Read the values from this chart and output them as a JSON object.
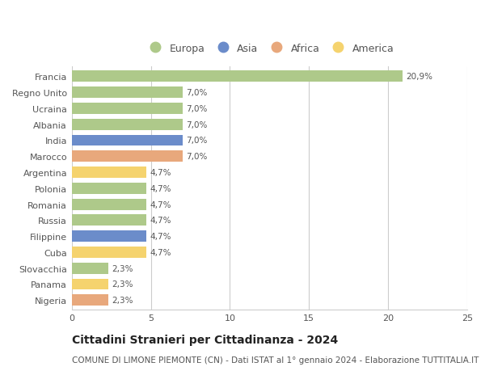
{
  "categories": [
    "Francia",
    "Regno Unito",
    "Ucraina",
    "Albania",
    "India",
    "Marocco",
    "Argentina",
    "Polonia",
    "Romania",
    "Russia",
    "Filippine",
    "Cuba",
    "Slovacchia",
    "Panama",
    "Nigeria"
  ],
  "values": [
    20.9,
    7.0,
    7.0,
    7.0,
    7.0,
    7.0,
    4.7,
    4.7,
    4.7,
    4.7,
    4.7,
    4.7,
    2.3,
    2.3,
    2.3
  ],
  "labels": [
    "20,9%",
    "7,0%",
    "7,0%",
    "7,0%",
    "7,0%",
    "7,0%",
    "4,7%",
    "4,7%",
    "4,7%",
    "4,7%",
    "4,7%",
    "4,7%",
    "2,3%",
    "2,3%",
    "2,3%"
  ],
  "colors": [
    "#aec98a",
    "#aec98a",
    "#aec98a",
    "#aec98a",
    "#6b8cca",
    "#e8a87c",
    "#f5d36e",
    "#aec98a",
    "#aec98a",
    "#aec98a",
    "#6b8cca",
    "#f5d36e",
    "#aec98a",
    "#f5d36e",
    "#e8a87c"
  ],
  "legend_labels": [
    "Europa",
    "Asia",
    "Africa",
    "America"
  ],
  "legend_colors": [
    "#aec98a",
    "#6b8cca",
    "#e8a87c",
    "#f5d36e"
  ],
  "title": "Cittadini Stranieri per Cittadinanza - 2024",
  "subtitle": "COMUNE DI LIMONE PIEMONTE (CN) - Dati ISTAT al 1° gennaio 2024 - Elaborazione TUTTITALIA.IT",
  "xlim": [
    0,
    25
  ],
  "xticks": [
    0,
    5,
    10,
    15,
    20,
    25
  ],
  "background_color": "#ffffff",
  "grid_color": "#cccccc",
  "title_fontsize": 10,
  "subtitle_fontsize": 7.5,
  "label_fontsize": 7.5,
  "tick_fontsize": 8,
  "bar_height": 0.7
}
